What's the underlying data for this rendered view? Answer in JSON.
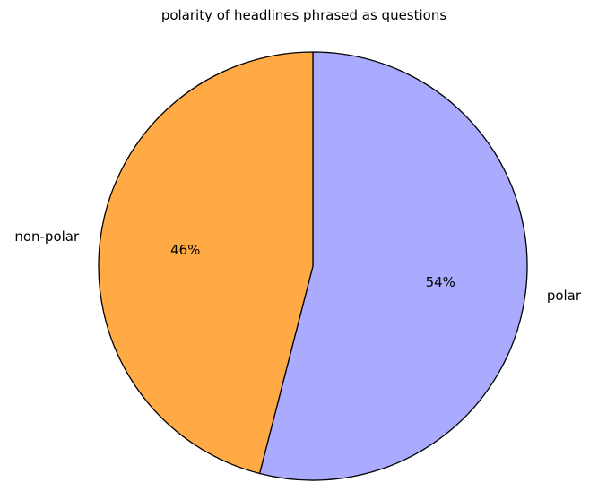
{
  "chart_data": {
    "type": "pie",
    "title": "polarity of headlines phrased as questions",
    "slices": [
      {
        "label": "polar",
        "value": 54,
        "pct_label": "54%",
        "color": "#aaaaff"
      },
      {
        "label": "non-polar",
        "value": 46,
        "pct_label": "46%",
        "color": "#ffaa44"
      }
    ],
    "start_angle_deg": 90,
    "direction": "clockwise",
    "edge_color": "#000000"
  }
}
